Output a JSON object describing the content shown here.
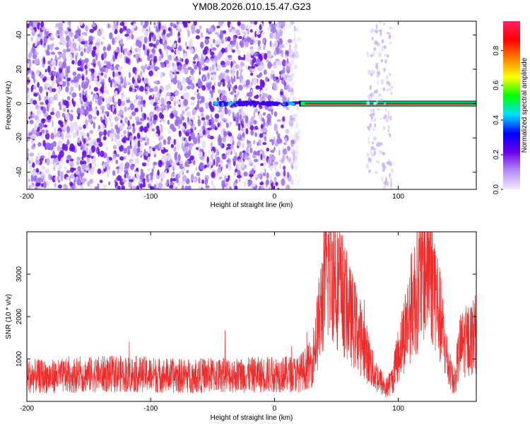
{
  "title": "YM08.2026.010.15.47.G23",
  "colors": {
    "background_scatter": "#8a5cf0",
    "signal_line": "#ef2b2b",
    "snr_trace": "#ef2b2b",
    "frame": "#000000"
  },
  "chart_data": [
    {
      "type": "heatmap",
      "xlabel": "Height of straight line (km)",
      "ylabel": "Frequency (Hz)",
      "xlim": [
        -200,
        163
      ],
      "ylim": [
        -50,
        48
      ],
      "xticks": [
        -200,
        -100,
        0,
        100
      ],
      "yticks": [
        -40,
        -20,
        0,
        20,
        40
      ],
      "grid": false,
      "colorbar": {
        "label": "Normalized spectral amplitude",
        "range": [
          0.0,
          0.97
        ],
        "ticks": [
          0.0,
          0.2,
          0.4,
          0.6,
          0.8
        ],
        "colormap": [
          "#f4eaff",
          "#b48cf5",
          "#6a00e8",
          "#0000ff",
          "#00e0ff",
          "#00ff00",
          "#ffff00",
          "#ff8000",
          "#ff0000",
          "#ff2060"
        ]
      },
      "features": [
        {
          "kind": "noise_region",
          "x": [
            -200,
            20
          ],
          "y": [
            -50,
            48
          ],
          "amplitude": 0.1
        },
        {
          "kind": "tone",
          "x": [
            -50,
            20
          ],
          "y": 0,
          "amplitude": 0.2
        },
        {
          "kind": "tone",
          "x": [
            20,
            163
          ],
          "y": 0,
          "amplitude": 0.9
        },
        {
          "kind": "noise_band",
          "x": [
            75,
            95
          ],
          "y": [
            -50,
            48
          ],
          "amplitude": 0.05
        }
      ]
    },
    {
      "type": "line",
      "xlabel": "Height of straight line (km)",
      "ylabel": "SNR (10 * v/v)",
      "xlim": [
        -200,
        163
      ],
      "ylim": [
        0,
        4000
      ],
      "xticks": [
        -200,
        -100,
        0,
        100
      ],
      "yticks": [
        1000,
        2000,
        3000
      ],
      "grid": false,
      "series": [
        {
          "x": [
            -200,
            -180,
            -160,
            -140,
            -120,
            -100,
            -80,
            -60,
            -40,
            -20,
            0,
            20,
            30,
            35,
            40,
            45,
            50,
            60,
            70,
            80,
            90,
            95,
            100,
            110,
            120,
            125,
            130,
            140,
            145,
            150,
            163
          ],
          "y": [
            600,
            580,
            620,
            640,
            650,
            630,
            600,
            610,
            620,
            620,
            640,
            650,
            900,
            1700,
            2700,
            3300,
            2900,
            2100,
            1500,
            700,
            300,
            500,
            1100,
            2200,
            3100,
            3300,
            2600,
            900,
            400,
            1300,
            1600
          ]
        }
      ]
    }
  ]
}
